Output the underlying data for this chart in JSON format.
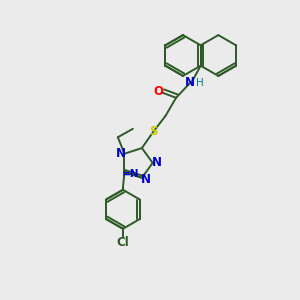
{
  "background_color": "#ebebeb",
  "bond_color": "#2d5a27",
  "atom_colors": {
    "N": "#0000cc",
    "O": "#ff0000",
    "S": "#cccc00",
    "Cl": "#2d5a27",
    "C": "#2d5a27",
    "H": "#008080"
  },
  "figsize": [
    3.0,
    3.0
  ],
  "dpi": 100
}
